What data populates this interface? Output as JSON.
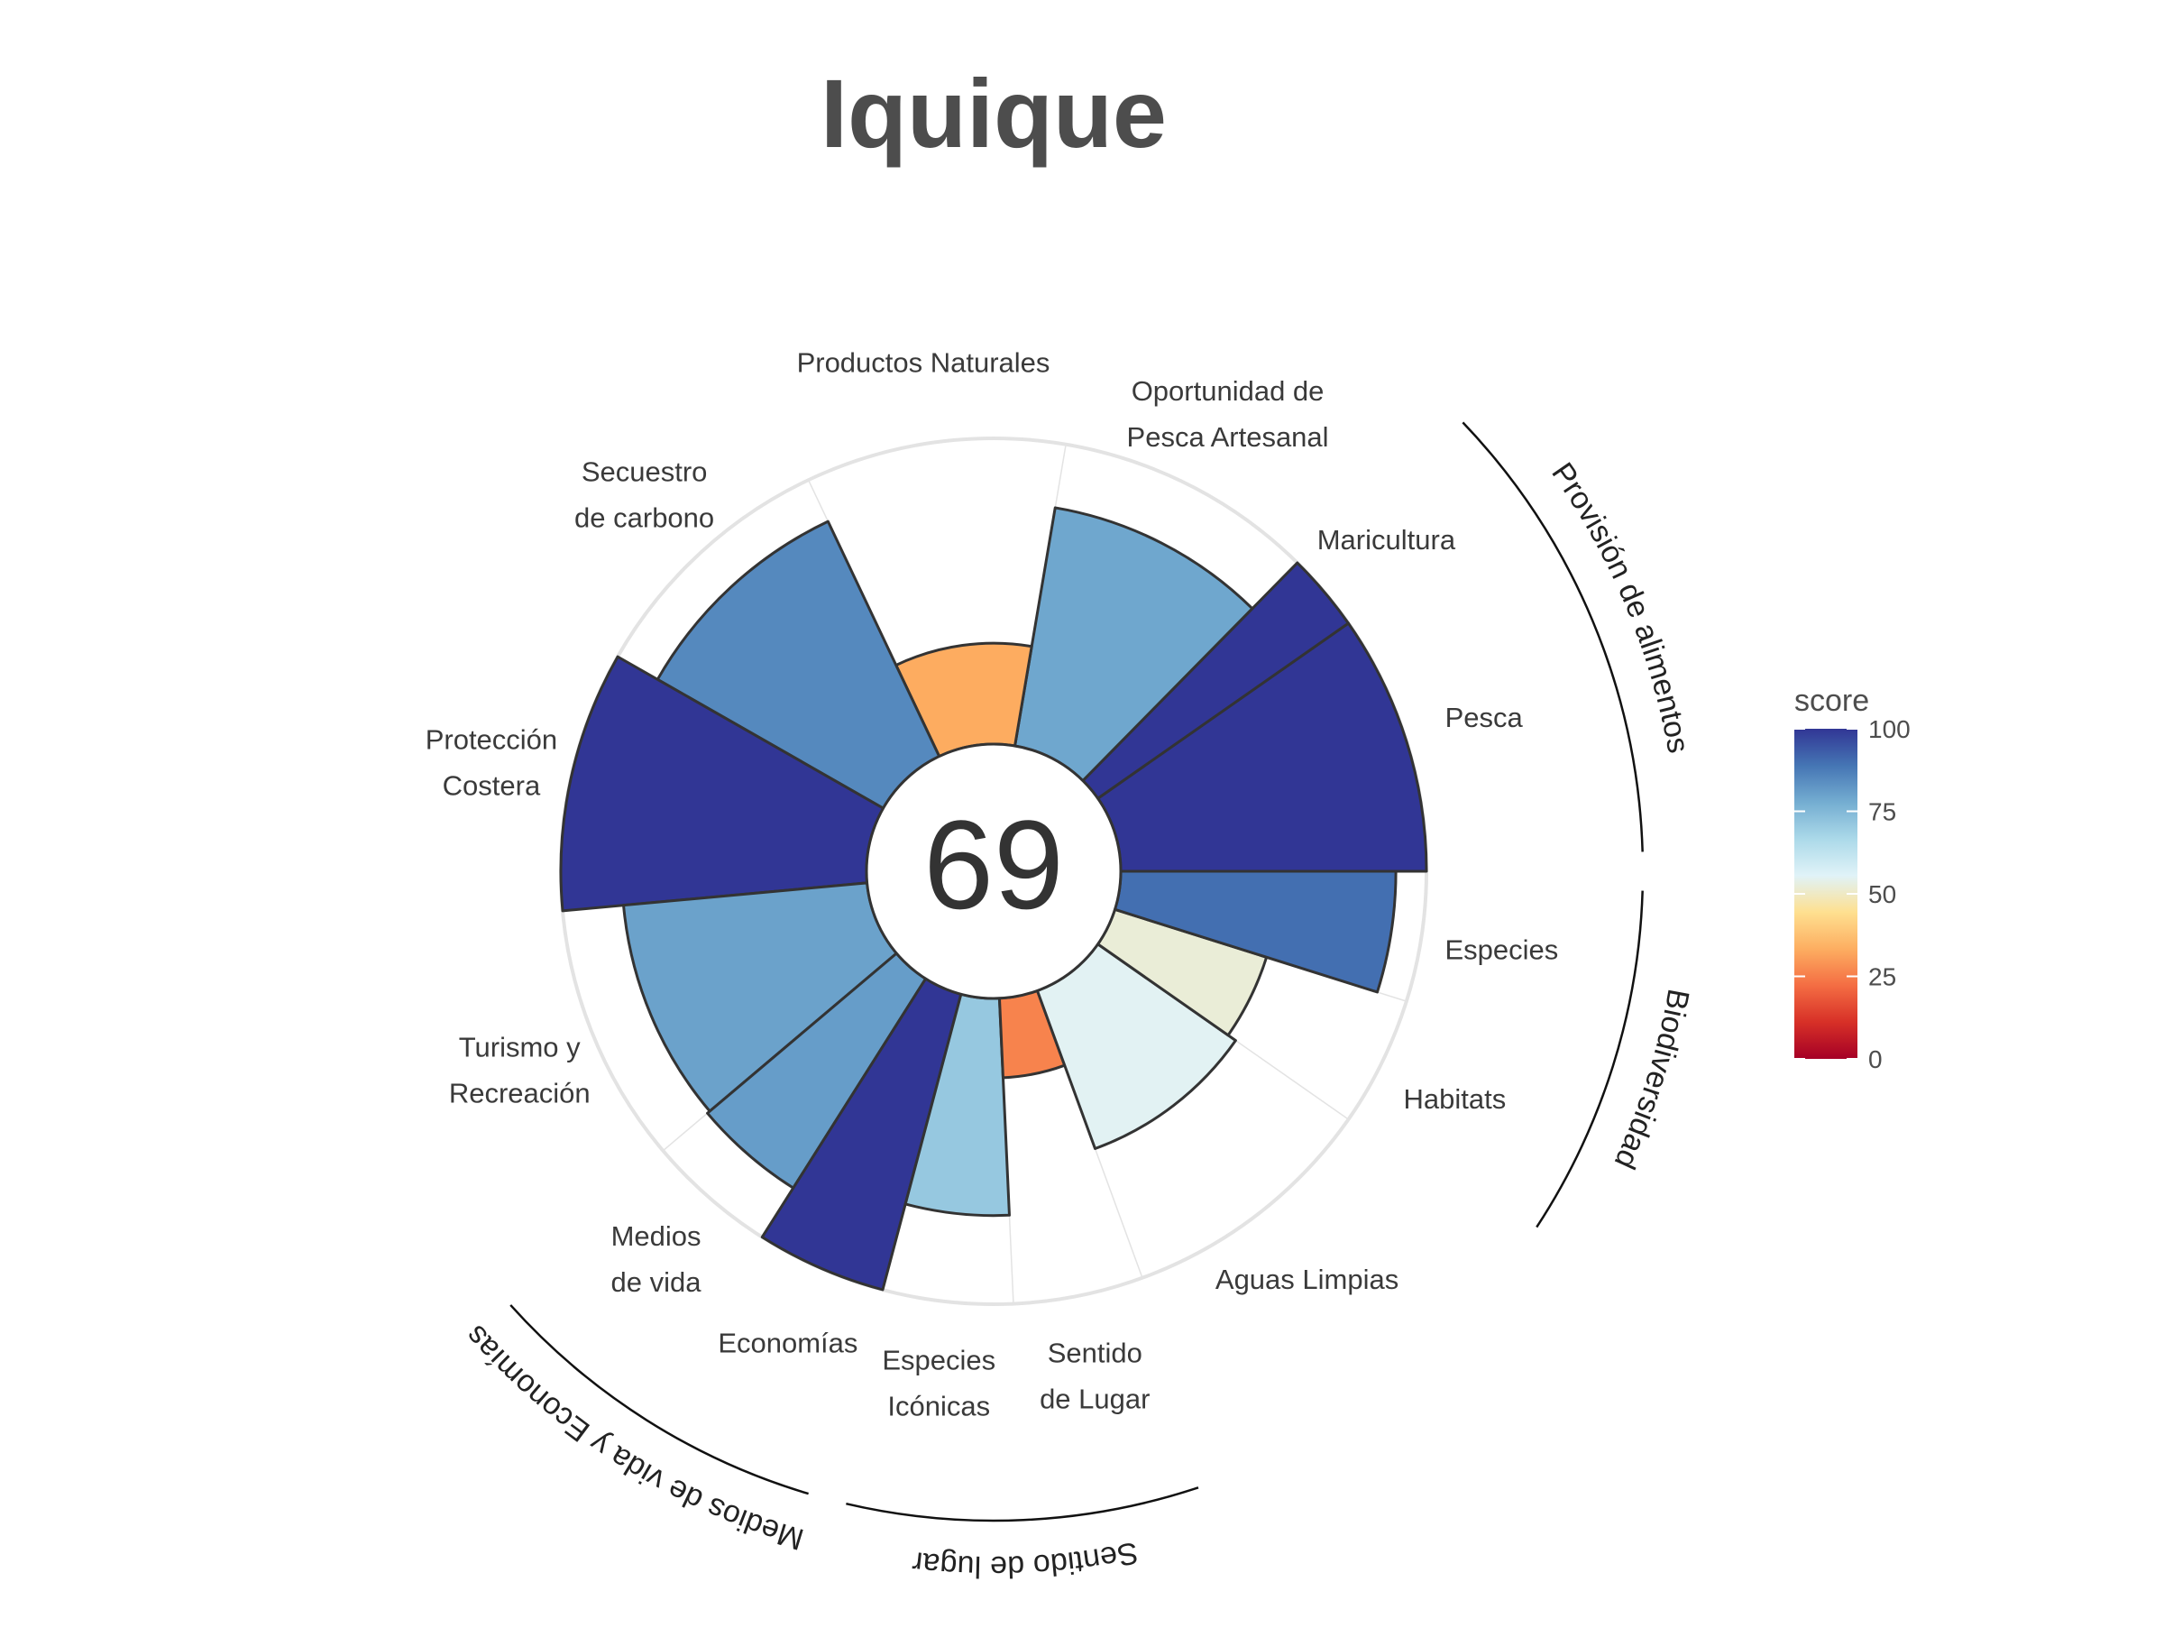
{
  "chart_data": {
    "type": "polar-bar",
    "title": "Iquique",
    "center_score": "69",
    "rlim": [
      0,
      100
    ],
    "grid": true,
    "legend_position": "right",
    "petals": [
      {
        "name": "pesca",
        "label_lines": [
          "Pesca"
        ],
        "value": 100,
        "weight": 1.0
      },
      {
        "name": "maricultura",
        "label_lines": [
          "Maricultura"
        ],
        "value": 100,
        "weight": 0.3
      },
      {
        "name": "oportunidad-pesca-artesanal",
        "label_lines": [
          "Oportunidad de",
          "Pesca Artesanal"
        ],
        "value": 79,
        "weight": 1.0
      },
      {
        "name": "productos-naturales",
        "label_lines": [
          "Productos Naturales"
        ],
        "value": 33,
        "weight": 1.0
      },
      {
        "name": "secuestro-carbono",
        "label_lines": [
          "Secuestro",
          "de carbono"
        ],
        "value": 85,
        "weight": 1.0
      },
      {
        "name": "proteccion-costera",
        "label_lines": [
          "Protección",
          "Costera"
        ],
        "value": 100,
        "weight": 1.0
      },
      {
        "name": "turismo-recreacion",
        "label_lines": [
          "Turismo y",
          "Recreación"
        ],
        "value": 80,
        "weight": 1.0
      },
      {
        "name": "medios-de-vida",
        "label_lines": [
          "Medios",
          "de vida"
        ],
        "value": 81,
        "weight": 0.5
      },
      {
        "name": "economias",
        "label_lines": [
          "Economías"
        ],
        "value": 100,
        "weight": 0.5
      },
      {
        "name": "especies-iconicas",
        "label_lines": [
          "Especies",
          "Icónicas"
        ],
        "value": 71,
        "weight": 0.5
      },
      {
        "name": "sentido-de-lugar",
        "label_lines": [
          "Sentido",
          "de Lugar"
        ],
        "value": 26,
        "weight": 0.5
      },
      {
        "name": "aguas-limpias",
        "label_lines": [
          "Aguas Limpias"
        ],
        "value": 55,
        "weight": 1.0
      },
      {
        "name": "habitats",
        "label_lines": [
          "Habitats"
        ],
        "value": 52,
        "weight": 0.5
      },
      {
        "name": "especies",
        "label_lines": [
          "Especies"
        ],
        "value": 90,
        "weight": 0.5
      }
    ],
    "goal_groups": [
      {
        "name": "provision-de-alimentos",
        "label": "Provisión de alimentos",
        "from": 0,
        "to": 1
      },
      {
        "name": "biodiversidad",
        "label": "Biodiversidad",
        "from": 12,
        "to": 13
      },
      {
        "name": "sentido-de-lugar-goal",
        "label": "Sentido de lugar",
        "from": 9,
        "to": 10
      },
      {
        "name": "medios-de-vida-y-economias",
        "label": "Medios de vida y Economías",
        "from": 7,
        "to": 8
      }
    ],
    "legend": {
      "title": "score",
      "ticks": [
        "0",
        "25",
        "50",
        "75",
        "100"
      ]
    },
    "colors": {
      "scale": [
        "#a50026",
        "#d73027",
        "#f46d43",
        "#fdae61",
        "#fee090",
        "#e0f3f8",
        "#abd9e9",
        "#74add1",
        "#4575b4",
        "#313695"
      ],
      "outline": "#333333",
      "grid": "#e3e3e3"
    }
  }
}
